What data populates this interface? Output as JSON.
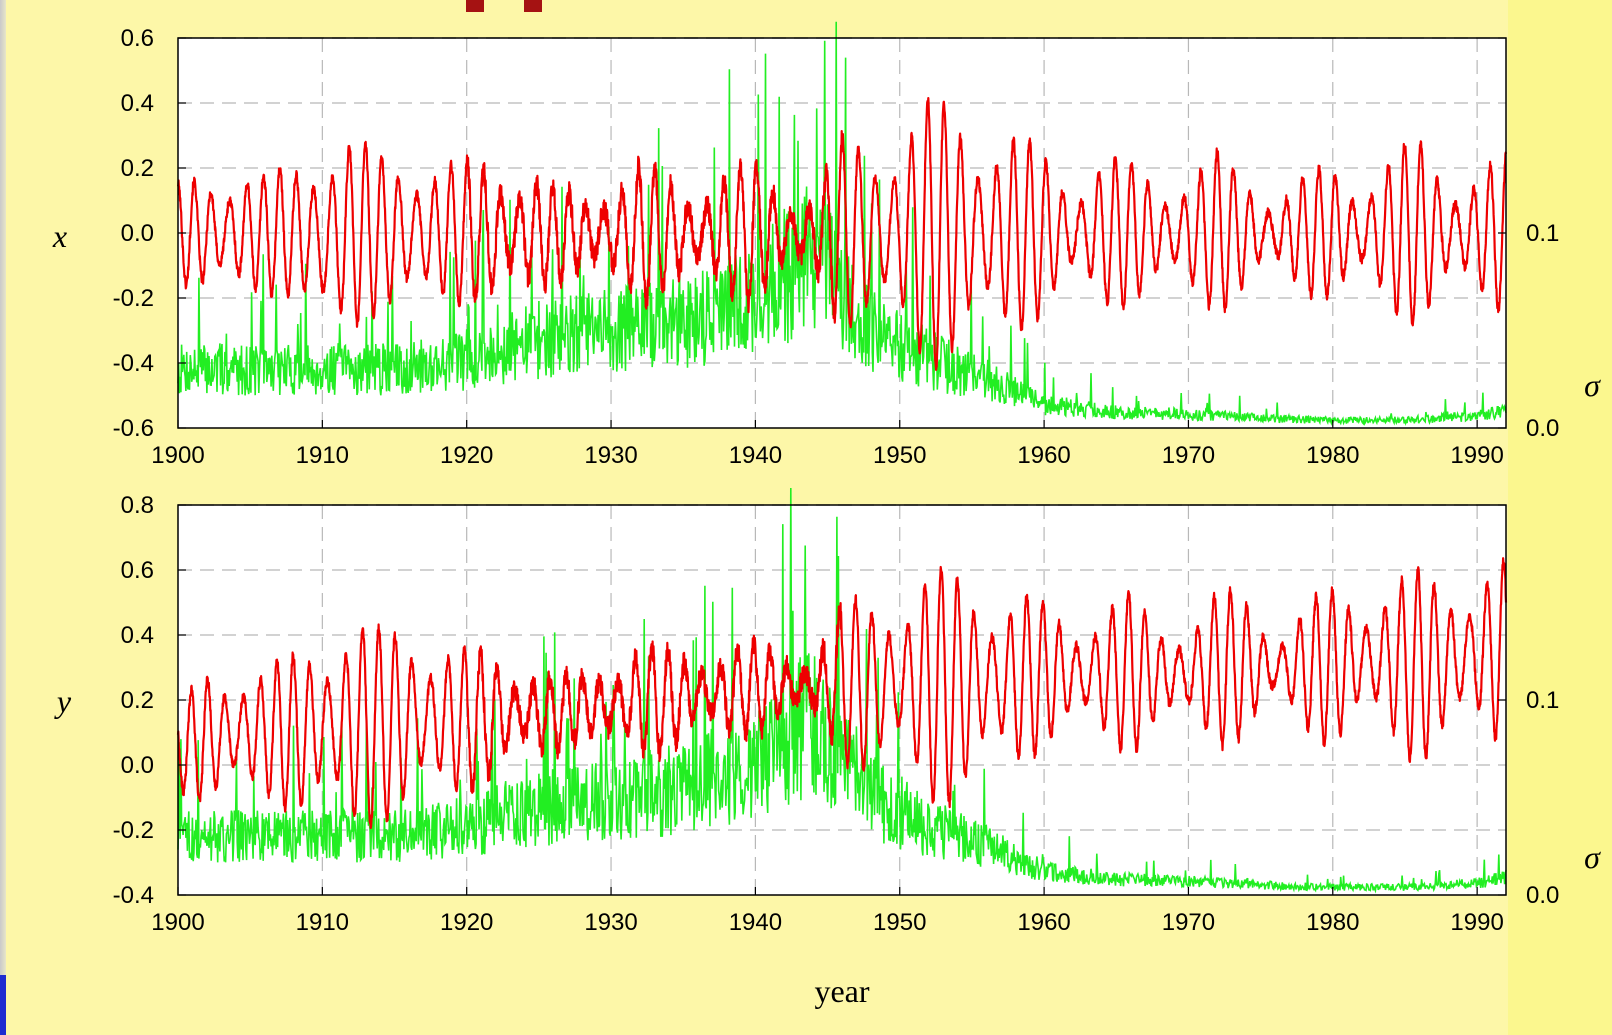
{
  "colors": {
    "signal": "#ee0000",
    "sigma": "#22ee22",
    "slide_background": "#fdf7a8",
    "grid": "#b8b8b8"
  },
  "chart_data": [
    {
      "type": "line",
      "ylabel": "x",
      "y2label": "σ",
      "xlabel": "",
      "xlim": [
        1900,
        1992
      ],
      "ylim": [
        -0.6,
        0.6
      ],
      "y2lim": [
        0.0,
        0.2
      ],
      "grid": true,
      "x_ticks": [
        "1900",
        "1910",
        "1920",
        "1930",
        "1940",
        "1950",
        "1960",
        "1970",
        "1980",
        "1990"
      ],
      "y_ticks": [
        "0.6",
        "0.4",
        "0.2",
        "0.0",
        "-0.2",
        "-0.4",
        "-0.6"
      ],
      "y2_ticks": [
        "0.1",
        "0.0"
      ],
      "series": [
        {
          "role": "coordinate",
          "x": [
            1900,
            1902,
            1904,
            1906,
            1908,
            1910,
            1912,
            1914,
            1916,
            1918,
            1920,
            1922,
            1924,
            1926,
            1928,
            1930,
            1932,
            1934,
            1936,
            1938,
            1940,
            1942,
            1944,
            1946,
            1948,
            1950,
            1952,
            1954,
            1956,
            1958,
            1960,
            1962,
            1964,
            1966,
            1968,
            1970,
            1972,
            1974,
            1976,
            1978,
            1980,
            1982,
            1984,
            1986,
            1988,
            1990,
            1992
          ],
          "mean": [
            0.0,
            0.0,
            0.0,
            0.0,
            0.0,
            -0.02,
            0.0,
            0.0,
            0.0,
            0.0,
            0.0,
            0.0,
            0.0,
            0.0,
            0.0,
            0.0,
            0.0,
            0.0,
            0.0,
            0.0,
            0.0,
            0.0,
            0.0,
            0.0,
            0.0,
            0.0,
            0.0,
            0.0,
            0.0,
            0.0,
            0.0,
            0.0,
            0.0,
            0.0,
            0.0,
            0.0,
            0.0,
            0.0,
            0.0,
            0.0,
            0.0,
            0.0,
            0.0,
            0.0,
            0.0,
            0.0,
            0.0
          ],
          "amplitude": [
            0.15,
            0.2,
            0.22,
            0.18,
            0.22,
            0.35,
            0.3,
            0.25,
            0.28,
            0.22,
            0.22,
            0.25,
            0.2,
            0.15,
            0.12,
            0.18,
            0.22,
            0.18,
            0.15,
            0.2,
            0.22,
            0.15,
            0.12,
            0.3,
            0.3,
            0.35,
            0.42,
            0.4,
            0.35,
            0.32,
            0.25,
            0.18,
            0.25,
            0.22,
            0.18,
            0.2,
            0.25,
            0.2,
            0.12,
            0.18,
            0.22,
            0.18,
            0.25,
            0.3,
            0.2,
            0.2,
            0.25
          ]
        },
        {
          "role": "sigma",
          "x": [
            1900,
            1905,
            1910,
            1915,
            1920,
            1925,
            1930,
            1935,
            1940,
            1944,
            1948,
            1952,
            1956,
            1960,
            1965,
            1970,
            1975,
            1980,
            1985,
            1990,
            1992
          ],
          "y": [
            0.03,
            0.03,
            0.03,
            0.03,
            0.035,
            0.045,
            0.05,
            0.055,
            0.065,
            0.09,
            0.05,
            0.035,
            0.025,
            0.012,
            0.008,
            0.007,
            0.005,
            0.004,
            0.004,
            0.006,
            0.01
          ]
        }
      ]
    },
    {
      "type": "line",
      "ylabel": "y",
      "y2label": "σ",
      "xlabel": "year",
      "xlim": [
        1900,
        1992
      ],
      "ylim": [
        -0.4,
        0.8
      ],
      "y2lim": [
        0.0,
        0.2
      ],
      "grid": true,
      "x_ticks": [
        "1900",
        "1910",
        "1920",
        "1930",
        "1940",
        "1950",
        "1960",
        "1970",
        "1980",
        "1990"
      ],
      "y_ticks": [
        "0.8",
        "0.6",
        "0.4",
        "0.2",
        "0.0",
        "-0.2",
        "-0.4"
      ],
      "y2_ticks": [
        "0.1",
        "0.0"
      ],
      "series": [
        {
          "role": "coordinate",
          "x": [
            1900,
            1902,
            1904,
            1906,
            1908,
            1910,
            1912,
            1914,
            1916,
            1918,
            1920,
            1922,
            1924,
            1926,
            1928,
            1930,
            1932,
            1934,
            1936,
            1938,
            1940,
            1942,
            1944,
            1946,
            1948,
            1950,
            1952,
            1954,
            1956,
            1958,
            1960,
            1962,
            1964,
            1966,
            1968,
            1970,
            1972,
            1974,
            1976,
            1978,
            1980,
            1982,
            1984,
            1986,
            1988,
            1990,
            1992
          ],
          "mean": [
            0.05,
            0.08,
            0.1,
            0.1,
            0.1,
            0.12,
            0.12,
            0.12,
            0.14,
            0.14,
            0.14,
            0.15,
            0.16,
            0.16,
            0.18,
            0.18,
            0.2,
            0.2,
            0.22,
            0.22,
            0.24,
            0.24,
            0.24,
            0.26,
            0.24,
            0.26,
            0.24,
            0.24,
            0.26,
            0.26,
            0.28,
            0.28,
            0.28,
            0.28,
            0.28,
            0.28,
            0.3,
            0.3,
            0.3,
            0.3,
            0.3,
            0.32,
            0.32,
            0.3,
            0.32,
            0.34,
            0.34
          ],
          "amplitude": [
            0.12,
            0.22,
            0.22,
            0.2,
            0.25,
            0.3,
            0.35,
            0.3,
            0.32,
            0.25,
            0.22,
            0.2,
            0.15,
            0.12,
            0.1,
            0.15,
            0.18,
            0.15,
            0.12,
            0.15,
            0.14,
            0.1,
            0.1,
            0.25,
            0.28,
            0.3,
            0.38,
            0.36,
            0.3,
            0.3,
            0.22,
            0.15,
            0.25,
            0.25,
            0.15,
            0.18,
            0.25,
            0.22,
            0.12,
            0.2,
            0.25,
            0.2,
            0.28,
            0.3,
            0.25,
            0.28,
            0.3
          ]
        },
        {
          "role": "sigma",
          "x": [
            1900,
            1905,
            1910,
            1915,
            1920,
            1925,
            1930,
            1935,
            1940,
            1944,
            1948,
            1952,
            1956,
            1960,
            1965,
            1970,
            1975,
            1980,
            1985,
            1990,
            1992
          ],
          "y": [
            0.03,
            0.03,
            0.03,
            0.03,
            0.035,
            0.045,
            0.05,
            0.055,
            0.065,
            0.09,
            0.05,
            0.035,
            0.025,
            0.012,
            0.008,
            0.007,
            0.005,
            0.004,
            0.004,
            0.006,
            0.01
          ]
        }
      ]
    }
  ]
}
